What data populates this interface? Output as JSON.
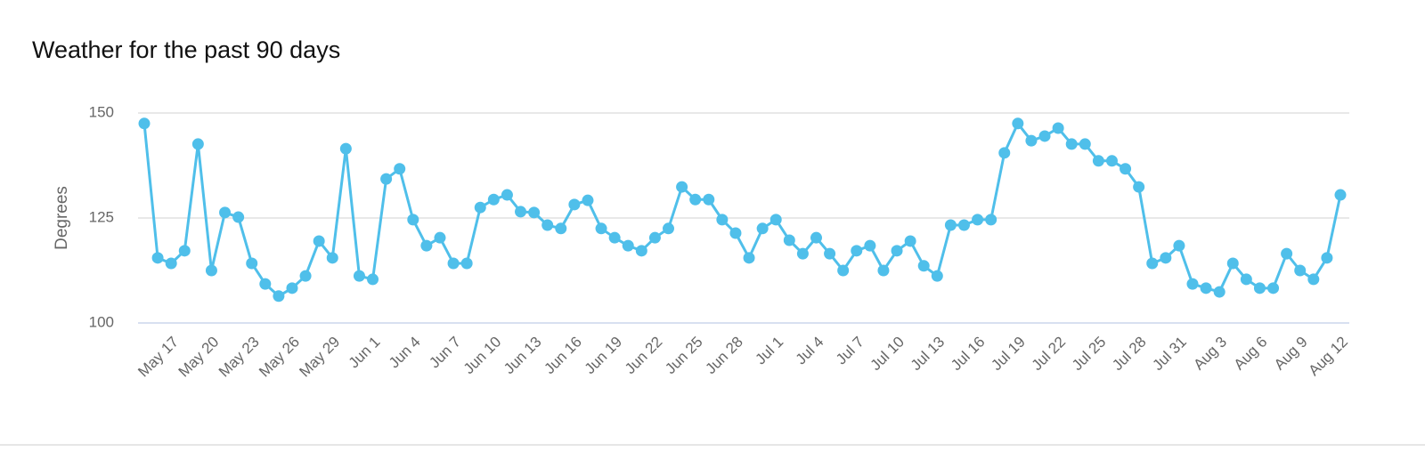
{
  "chart_data": {
    "type": "line",
    "title": "Weather for the past 90 days",
    "y_label": "Degrees",
    "categories": [
      null,
      null,
      "May 17",
      null,
      null,
      "May 20",
      null,
      null,
      "May 23",
      null,
      null,
      "May 26",
      null,
      null,
      "May 29",
      null,
      null,
      "Jun 1",
      null,
      null,
      "Jun 4",
      null,
      null,
      "Jun 7",
      null,
      null,
      "Jun 10",
      null,
      null,
      "Jun 13",
      null,
      null,
      "Jun 16",
      null,
      null,
      "Jun 19",
      null,
      null,
      "Jun 22",
      null,
      null,
      "Jun 25",
      null,
      null,
      "Jun 28",
      null,
      null,
      "Jul 1",
      null,
      null,
      "Jul 4",
      null,
      null,
      "Jul 7",
      null,
      null,
      "Jul 10",
      null,
      null,
      "Jul 13",
      null,
      null,
      "Jul 16",
      null,
      null,
      "Jul 19",
      null,
      null,
      "Jul 22",
      null,
      null,
      "Jul 25",
      null,
      null,
      "Jul 28",
      null,
      null,
      "Jul 31",
      null,
      null,
      "Aug 3",
      null,
      null,
      "Aug 6",
      null,
      null,
      "Aug 9",
      null,
      null,
      "Aug 12"
    ],
    "values": [
      147.5,
      115.5,
      114.2,
      117.2,
      142.6,
      112.5,
      126.3,
      125.2,
      114.2,
      109.3,
      106.4,
      108.3,
      111.2,
      119.5,
      115.5,
      141.5,
      111.2,
      110.4,
      134.3,
      136.7,
      124.6,
      118.4,
      120.3,
      114.2,
      114.2,
      127.5,
      129.4,
      130.5,
      126.5,
      126.3,
      123.3,
      122.5,
      128.2,
      129.2,
      122.5,
      120.3,
      118.4,
      117.2,
      120.3,
      122.5,
      132.4,
      129.4,
      129.4,
      124.6,
      121.4,
      115.5,
      122.5,
      124.6,
      119.7,
      116.5,
      120.3,
      116.5,
      112.5,
      117.2,
      118.4,
      112.5,
      117.2,
      119.5,
      113.6,
      111.2,
      123.3,
      123.3,
      124.6,
      124.6,
      140.5,
      147.5,
      143.4,
      144.5,
      146.4,
      142.6,
      142.6,
      138.6,
      138.6,
      136.7,
      132.4,
      114.2,
      115.5,
      118.4,
      109.3,
      108.3,
      107.4,
      114.2,
      110.4,
      108.3,
      108.3,
      116.5,
      112.5,
      110.4,
      115.5,
      130.5
    ],
    "color": "#4fbfea",
    "ylim": [
      100,
      150
    ],
    "yticks": [
      100,
      125,
      150
    ],
    "grid": true
  }
}
